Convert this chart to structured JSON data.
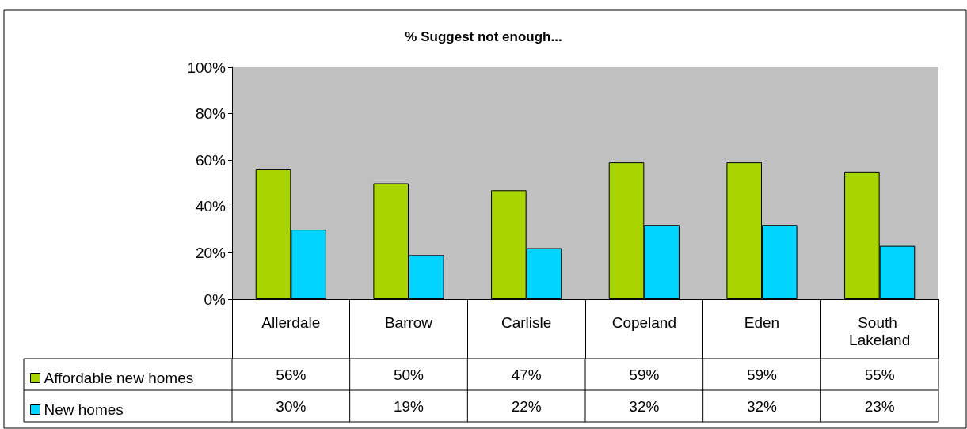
{
  "chart_data": {
    "type": "bar",
    "title": "% Suggest not enough...",
    "categories": [
      "Allerdale",
      "Barrow",
      "Carlisle",
      "Copeland",
      "Eden",
      "South Lakeland"
    ],
    "series": [
      {
        "name": "Affordable new homes",
        "color": "#a8d400",
        "values": [
          56,
          50,
          47,
          59,
          59,
          55
        ],
        "value_labels": [
          "56%",
          "50%",
          "47%",
          "59%",
          "59%",
          "55%"
        ]
      },
      {
        "name": "New homes",
        "color": "#00d4ff",
        "values": [
          30,
          19,
          22,
          32,
          32,
          23
        ],
        "value_labels": [
          "30%",
          "19%",
          "22%",
          "32%",
          "32%",
          "23%"
        ]
      }
    ],
    "ylim": [
      0,
      100
    ],
    "yticks": [
      {
        "value": 0,
        "label": "0%"
      },
      {
        "value": 20,
        "label": "20%"
      },
      {
        "value": 40,
        "label": "40%"
      },
      {
        "value": 60,
        "label": "60%"
      },
      {
        "value": 80,
        "label": "80%"
      },
      {
        "value": 100,
        "label": "100%"
      }
    ],
    "grid": false,
    "legend": "bottom left"
  }
}
